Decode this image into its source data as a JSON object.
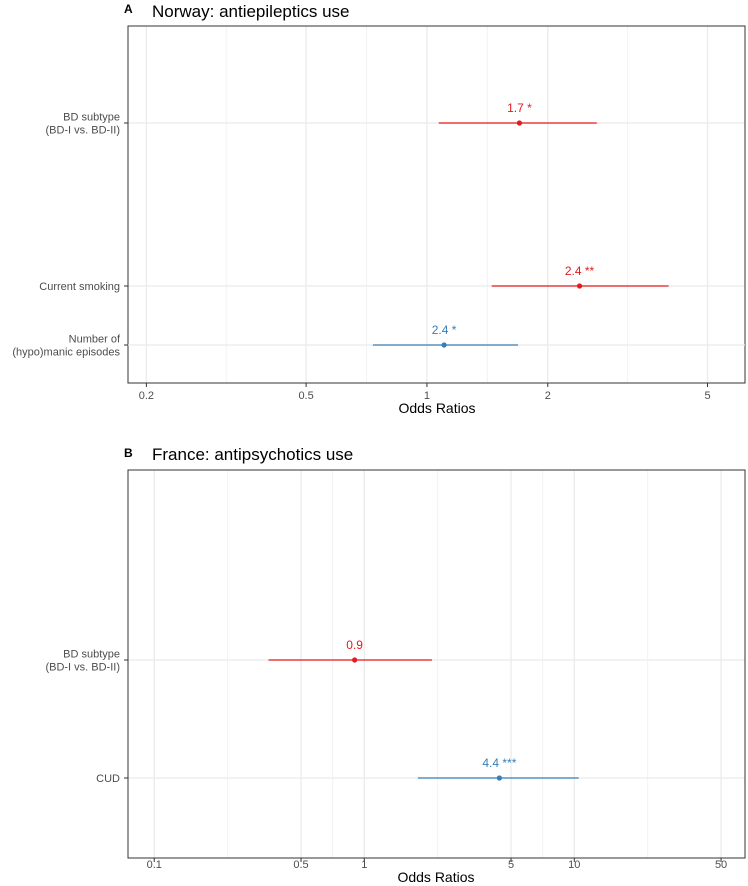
{
  "chart_data": [
    {
      "type": "scatter",
      "panel": "A",
      "title": "Norway: antiepileptics use",
      "xlabel": "Odds Ratios",
      "ylabel": "",
      "x_scale": "log",
      "xlim": [
        0.18,
        6.2
      ],
      "x_ticks": [
        0.2,
        0.5,
        1,
        2,
        5
      ],
      "x_tick_labels": [
        "0.2",
        "0.5",
        "1",
        "2",
        "5"
      ],
      "grid": true,
      "categories": [
        {
          "label": "BD subtype\n(BD-I vs. BD-II)",
          "or": 1.7,
          "ci_low": 1.07,
          "ci_high": 2.65,
          "annotation": "1.7 *",
          "color": "#e41a1c"
        },
        {
          "label": "Current smoking",
          "or": 2.4,
          "ci_low": 1.45,
          "ci_high": 4.0,
          "annotation": "2.4 **",
          "color": "#e41a1c"
        }
      ]
    },
    {
      "type": "scatter",
      "panel": "B",
      "title": "France: antipsychotics use",
      "xlabel": "Odds Ratios",
      "ylabel": "",
      "x_scale": "log",
      "xlim": [
        0.075,
        65
      ],
      "x_ticks": [
        0.1,
        0.5,
        1,
        5,
        10,
        50
      ],
      "x_tick_labels": [
        "0.1",
        "0.5",
        "1",
        "5",
        "10",
        "50"
      ],
      "grid": true,
      "categories": [
        {
          "label": "Number of\n(hypo)manic episodes",
          "or": 2.4,
          "ci_low": 1.1,
          "ci_high": 5.4,
          "annotation": "2.4 *",
          "color": "#377eb8"
        },
        {
          "label": "BD subtype\n(BD-I vs. BD-II)",
          "or": 0.9,
          "ci_low": 0.35,
          "ci_high": 2.1,
          "annotation": "0.9",
          "color": "#e41a1c"
        },
        {
          "label": "CUD",
          "or": 4.4,
          "ci_low": 1.8,
          "ci_high": 10.5,
          "annotation": "4.4 ***",
          "color": "#377eb8"
        }
      ]
    }
  ]
}
